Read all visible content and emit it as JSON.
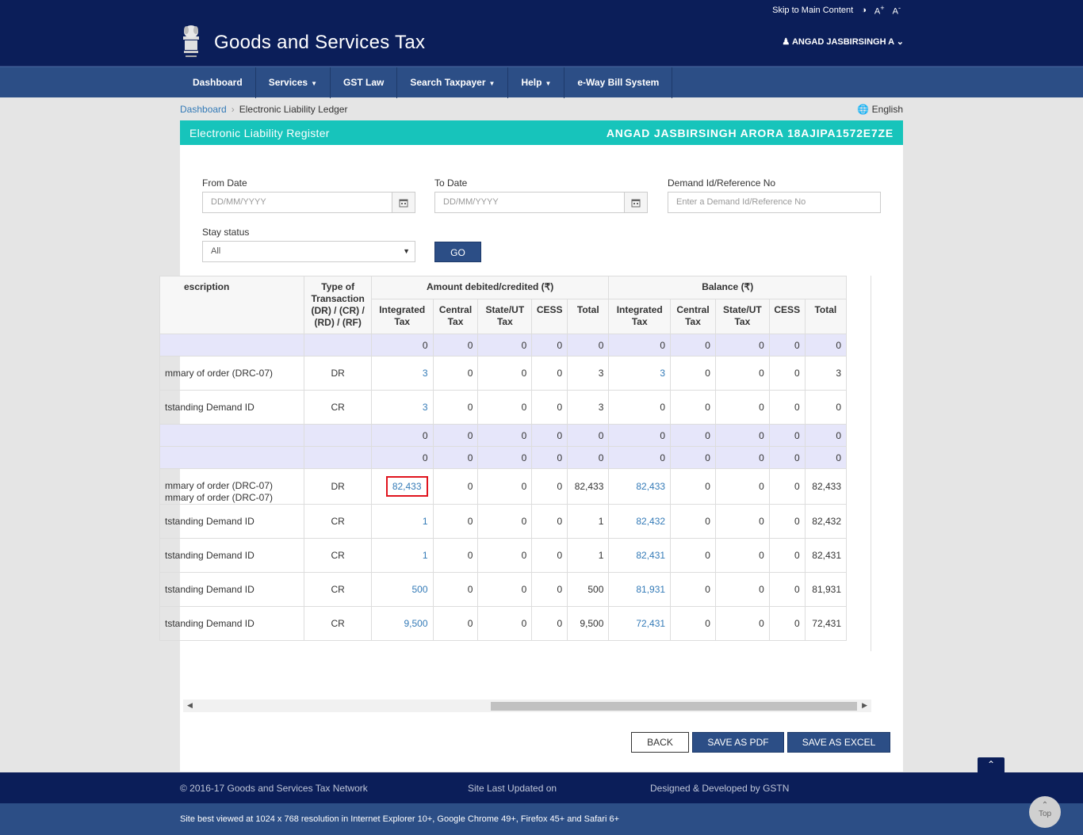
{
  "topbar": {
    "skip": "Skip to Main Content",
    "contrast_icon": "contrast-icon",
    "font_up": "A+",
    "font_down": "A-"
  },
  "header": {
    "title": "Goods and Services Tax",
    "user": "ANGAD JASBIRSINGH A"
  },
  "nav": [
    {
      "label": "Dashboard",
      "dropdown": false
    },
    {
      "label": "Services",
      "dropdown": true
    },
    {
      "label": "GST Law",
      "dropdown": false
    },
    {
      "label": "Search Taxpayer",
      "dropdown": true
    },
    {
      "label": "Help",
      "dropdown": true
    },
    {
      "label": "e-Way Bill System",
      "dropdown": false
    }
  ],
  "breadcrumb": {
    "home": "Dashboard",
    "current": "Electronic Liability Ledger"
  },
  "language": "English",
  "panel": {
    "title": "Electronic Liability Register",
    "taxpayer": "ANGAD JASBIRSINGH ARORA 18AJIPA1572E7ZE"
  },
  "form": {
    "from_date_label": "From Date",
    "from_date_placeholder": "DD/MM/YYYY",
    "to_date_label": "To Date",
    "to_date_placeholder": "DD/MM/YYYY",
    "demand_label": "Demand Id/Reference No",
    "demand_placeholder": "Enter a Demand Id/Reference No",
    "stay_label": "Stay status",
    "stay_value": "All",
    "go": "GO"
  },
  "table": {
    "headers": {
      "desc": "escription",
      "type": "Type of Transaction (DR) / (CR) / (RD) / (RF)",
      "amount_group": "Amount debited/credited (₹)",
      "balance_group": "Balance (₹)",
      "sub": [
        "Integrated Tax",
        "Central Tax",
        "State/UT Tax",
        "CESS",
        "Total",
        "Integrated Tax",
        "Central Tax",
        "State/UT Tax",
        "CESS",
        "Total"
      ]
    },
    "rows": [
      {
        "desc": "",
        "type": "",
        "shaded": true,
        "cells": [
          "0",
          "0",
          "0",
          "0",
          "0",
          "0",
          "0",
          "0",
          "0",
          "0"
        ],
        "links": []
      },
      {
        "desc": "mmary of order (DRC-07)",
        "type": "DR",
        "cells": [
          "3",
          "0",
          "0",
          "0",
          "3",
          "3",
          "0",
          "0",
          "0",
          "3"
        ],
        "links": [
          0,
          5
        ]
      },
      {
        "desc": "tstanding Demand ID",
        "type": "CR",
        "cells": [
          "3",
          "0",
          "0",
          "0",
          "3",
          "0",
          "0",
          "0",
          "0",
          "0"
        ],
        "links": [
          0
        ]
      },
      {
        "desc": "",
        "type": "",
        "shaded": true,
        "cells": [
          "0",
          "0",
          "0",
          "0",
          "0",
          "0",
          "0",
          "0",
          "0",
          "0"
        ],
        "links": []
      },
      {
        "desc": "",
        "type": "",
        "shaded": true,
        "cells": [
          "0",
          "0",
          "0",
          "0",
          "0",
          "0",
          "0",
          "0",
          "0",
          "0"
        ],
        "links": []
      },
      {
        "desc": "mmary of order (DRC-07)\nmmary of order (DRC-07)",
        "type": "DR",
        "cells": [
          "82,433",
          "0",
          "0",
          "0",
          "82,433",
          "82,433",
          "0",
          "0",
          "0",
          "82,433"
        ],
        "links": [
          0,
          5
        ],
        "highlight": 0
      },
      {
        "desc": "tstanding Demand ID",
        "type": "CR",
        "cells": [
          "1",
          "0",
          "0",
          "0",
          "1",
          "82,432",
          "0",
          "0",
          "0",
          "82,432"
        ],
        "links": [
          0,
          5
        ]
      },
      {
        "desc": "tstanding Demand ID",
        "type": "CR",
        "cells": [
          "1",
          "0",
          "0",
          "0",
          "1",
          "82,431",
          "0",
          "0",
          "0",
          "82,431"
        ],
        "links": [
          0,
          5
        ]
      },
      {
        "desc": "tstanding Demand ID",
        "type": "CR",
        "cells": [
          "500",
          "0",
          "0",
          "0",
          "500",
          "81,931",
          "0",
          "0",
          "0",
          "81,931"
        ],
        "links": [
          0,
          5
        ]
      },
      {
        "desc": "tstanding Demand ID",
        "type": "CR",
        "cells": [
          "9,500",
          "0",
          "0",
          "0",
          "9,500",
          "72,431",
          "0",
          "0",
          "0",
          "72,431"
        ],
        "links": [
          0,
          5
        ]
      }
    ]
  },
  "buttons": {
    "back": "BACK",
    "pdf": "SAVE AS PDF",
    "excel": "SAVE AS EXCEL"
  },
  "footer": {
    "copyright": "© 2016-17 Goods and Services Tax Network",
    "updated": "Site Last Updated on",
    "designed": "Designed & Developed by GSTN",
    "best_viewed": "Site best viewed at 1024 x 768 resolution in Internet Explorer 10+, Google Chrome 49+, Firefox 45+ and Safari 6+",
    "top": "Top"
  },
  "colors": {
    "navy": "#0b1e59",
    "nav_blue": "#2c4e86",
    "teal": "#17c4bb",
    "link": "#337ab7",
    "highlight_red": "#e0141e"
  }
}
